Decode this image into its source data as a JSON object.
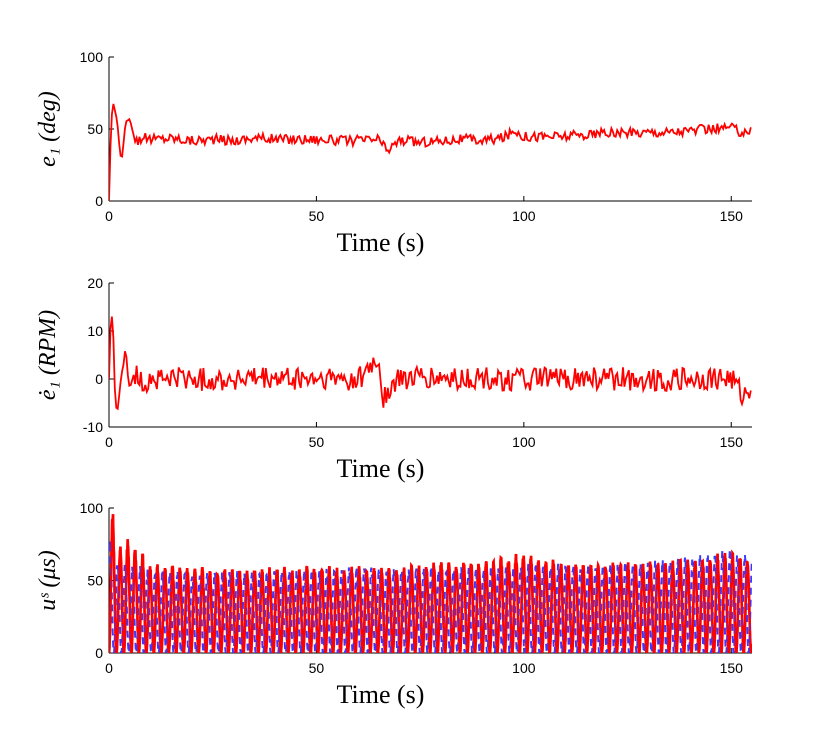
{
  "chart_data": [
    {
      "type": "line",
      "ylabel": "e₁ (deg)",
      "xlabel": "Time (s)",
      "xlim": [
        0,
        155
      ],
      "ylim": [
        0,
        100
      ],
      "xticks": [
        "0",
        "50",
        "100",
        "150"
      ],
      "yticks": [
        "0",
        "50",
        "100"
      ],
      "grid": false,
      "series": [
        {
          "color": "#ff0000",
          "style": "solid",
          "x": [
            0,
            0.5,
            1,
            1.5,
            2,
            2.5,
            3,
            3.5,
            4,
            5,
            6,
            7,
            8,
            10,
            15,
            20,
            25,
            30,
            35,
            40,
            45,
            50,
            55,
            60,
            65,
            67,
            70,
            75,
            80,
            85,
            90,
            95,
            98,
            100,
            105,
            110,
            115,
            120,
            125,
            130,
            135,
            140,
            145,
            150,
            152,
            155
          ],
          "y": [
            0,
            55,
            68,
            62,
            55,
            38,
            27,
            40,
            55,
            57,
            45,
            42,
            44,
            43,
            44,
            42,
            43,
            42,
            44,
            43,
            43,
            43,
            42,
            42,
            43,
            35,
            42,
            41,
            42,
            43,
            42,
            44,
            49,
            45,
            45,
            45,
            46,
            47,
            47,
            48,
            48,
            49,
            50,
            51,
            48,
            49
          ]
        }
      ]
    },
    {
      "type": "line",
      "ylabel": "ė₁ (RPM)",
      "xlabel": "Time (s)",
      "xlim": [
        0,
        155
      ],
      "ylim": [
        -10,
        20
      ],
      "xticks": [
        "0",
        "50",
        "100",
        "150"
      ],
      "yticks": [
        "-10",
        "0",
        "10",
        "20"
      ],
      "grid": false,
      "series": [
        {
          "color": "#ff0000",
          "style": "solid",
          "x": [
            0,
            0.5,
            1,
            1.5,
            2,
            2.5,
            3,
            3.5,
            4,
            4.5,
            5,
            6,
            8,
            10,
            20,
            30,
            40,
            50,
            60,
            65,
            66,
            70,
            80,
            90,
            100,
            110,
            120,
            130,
            140,
            150,
            153,
            155
          ],
          "y": [
            0,
            15,
            10,
            -5,
            -7,
            -3,
            1,
            3,
            7,
            1,
            -2,
            1,
            -1,
            0,
            0,
            0,
            0,
            0,
            0,
            4,
            -4,
            0,
            0,
            0,
            0,
            0,
            0,
            0,
            0,
            0,
            -4,
            -1
          ],
          "noise_amplitude": 2.5
        }
      ]
    },
    {
      "type": "line",
      "ylabel": "uˢ (μs)",
      "xlabel": "Time (s)",
      "xlim": [
        0,
        155
      ],
      "ylim": [
        0,
        100
      ],
      "xticks": [
        "0",
        "50",
        "100",
        "150"
      ],
      "yticks": [
        "0",
        "50",
        "100"
      ],
      "grid": false,
      "series": [
        {
          "color": "#ff0000",
          "style": "solid",
          "oscillation_period_s": 1.8,
          "x": [
            0,
            1,
            2,
            5,
            10,
            20,
            30,
            40,
            50,
            60,
            70,
            80,
            90,
            100,
            110,
            120,
            130,
            140,
            150,
            155
          ],
          "peak": [
            97,
            97,
            75,
            80,
            62,
            60,
            58,
            60,
            60,
            60,
            60,
            64,
            64,
            70,
            64,
            63,
            64,
            66,
            70,
            66
          ]
        },
        {
          "color": "#3a3aff",
          "style": "dashed",
          "oscillation_period_s": 1.8,
          "x": [
            0,
            1,
            2,
            5,
            10,
            20,
            30,
            40,
            50,
            60,
            70,
            80,
            90,
            100,
            110,
            120,
            130,
            140,
            150,
            155
          ],
          "peak": [
            80,
            75,
            65,
            62,
            58,
            57,
            57,
            58,
            58,
            60,
            60,
            60,
            60,
            62,
            62,
            63,
            64,
            68,
            72,
            68
          ]
        }
      ]
    }
  ]
}
